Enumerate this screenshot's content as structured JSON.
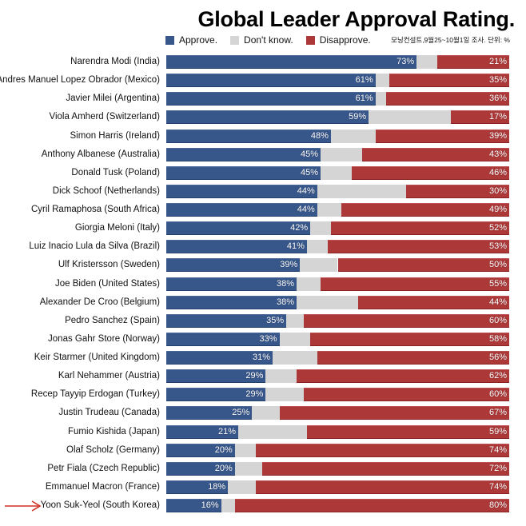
{
  "chart_data": {
    "type": "bar",
    "orientation": "horizontal",
    "stacked": true,
    "title": "Global Leader Approval Rating.",
    "source_note": "모닝컨설트,9월25~10월1일 조사. 단위: %",
    "xlabel": "",
    "ylabel": "",
    "xlim": [
      0,
      100
    ],
    "grid": false,
    "legend_position": "top",
    "legend": [
      {
        "name": "Approve.",
        "color": "#37568a"
      },
      {
        "name": "Don't know.",
        "color": "#d5d5d5"
      },
      {
        "name": "Disapprove.",
        "color": "#ac3838"
      }
    ],
    "categories": [
      "Narendra Modi (India)",
      "Andres Manuel Lopez Obrador (Mexico)",
      "Javier Milei (Argentina)",
      "Viola Amherd (Switzerland)",
      "Simon Harris (Ireland)",
      "Anthony Albanese (Australia)",
      "Donald Tusk (Poland)",
      "Dick Schoof (Netherlands)",
      "Cyril Ramaphosa (South Africa)",
      "Giorgia Meloni (Italy)",
      "Luiz Inacio Lula da Silva (Brazil)",
      "Ulf Kristersson (Sweden)",
      "Joe Biden (United States)",
      "Alexander De Croo (Belgium)",
      "Pedro Sanchez (Spain)",
      "Jonas Gahr Store (Norway)",
      "Keir Starmer (United Kingdom)",
      "Karl Nehammer (Austria)",
      "Recep Tayyip Erdogan (Turkey)",
      "Justin Trudeau (Canada)",
      "Fumio Kishida (Japan)",
      "Olaf Scholz (Germany)",
      "Petr Fiala (Czech Republic)",
      "Emmanuel Macron (France)",
      "Yoon Suk-Yeol (South Korea)"
    ],
    "series": [
      {
        "name": "Approve.",
        "values": [
          73,
          61,
          61,
          59,
          48,
          45,
          45,
          44,
          44,
          42,
          41,
          39,
          38,
          38,
          35,
          33,
          31,
          29,
          29,
          25,
          21,
          20,
          20,
          18,
          16
        ]
      },
      {
        "name": "Don't know.",
        "values": [
          6,
          4,
          3,
          24,
          13,
          12,
          9,
          26,
          7,
          6,
          6,
          11,
          7,
          18,
          5,
          9,
          13,
          9,
          11,
          8,
          20,
          6,
          8,
          8,
          4
        ]
      },
      {
        "name": "Disapprove.",
        "values": [
          21,
          35,
          36,
          17,
          39,
          43,
          46,
          30,
          49,
          52,
          53,
          50,
          55,
          44,
          60,
          58,
          56,
          62,
          60,
          67,
          59,
          74,
          72,
          74,
          80
        ]
      }
    ],
    "value_label_suffix": "%",
    "highlighted_category": "Yoon Suk-Yeol (South Korea)",
    "annotations": [
      {
        "type": "arrow",
        "target": "Yoon Suk-Yeol (South Korea)",
        "color": "#d03020"
      }
    ]
  }
}
